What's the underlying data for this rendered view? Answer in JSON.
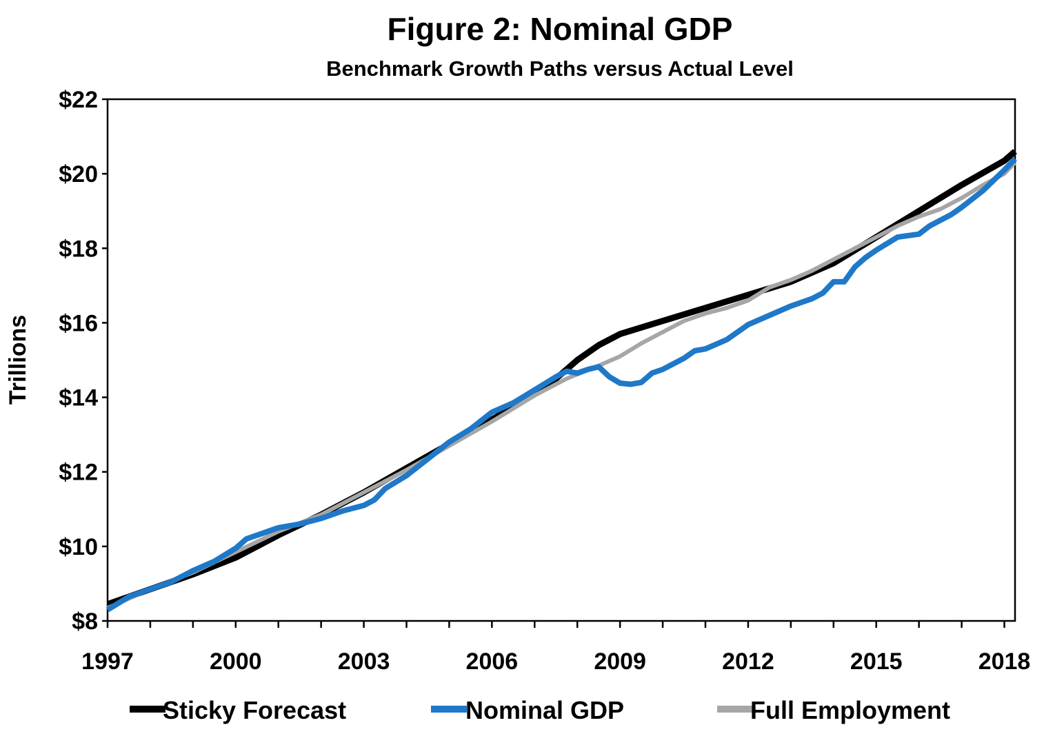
{
  "chart_data": {
    "type": "line",
    "title": "Figure 2: Nominal GDP",
    "subtitle": "Benchmark Growth Paths versus Actual Level",
    "ylabel": "Trillions",
    "xlabel": "",
    "ylim": [
      8,
      22
    ],
    "xlim": [
      1997.0,
      2018.25
    ],
    "y_ticks": [
      8,
      10,
      12,
      14,
      16,
      18,
      20,
      22
    ],
    "y_tick_labels": [
      "$8",
      "$10",
      "$12",
      "$14",
      "$16",
      "$18",
      "$20",
      "$22"
    ],
    "x_major_ticks": [
      1997,
      2000,
      2003,
      2006,
      2009,
      2012,
      2015,
      2018
    ],
    "x_tick_labels": [
      "1997",
      "2000",
      "2003",
      "2006",
      "2009",
      "2012",
      "2015",
      "2018"
    ],
    "legend_position": "bottom",
    "series": [
      {
        "name": "Sticky Forecast",
        "color": "#000000",
        "points": [
          [
            1997,
            8.45
          ],
          [
            1998,
            8.85
          ],
          [
            1999,
            9.25
          ],
          [
            2000,
            9.7
          ],
          [
            2001,
            10.3
          ],
          [
            2002,
            10.85
          ],
          [
            2003,
            11.45
          ],
          [
            2004,
            12.1
          ],
          [
            2005,
            12.75
          ],
          [
            2006,
            13.4
          ],
          [
            2007,
            14.1
          ],
          [
            2007.5,
            14.5
          ],
          [
            2008,
            15.0
          ],
          [
            2008.5,
            15.4
          ],
          [
            2009,
            15.7
          ],
          [
            2010,
            16.05
          ],
          [
            2011,
            16.4
          ],
          [
            2012,
            16.75
          ],
          [
            2013,
            17.1
          ],
          [
            2014,
            17.6
          ],
          [
            2015,
            18.3
          ],
          [
            2016,
            19.0
          ],
          [
            2017,
            19.7
          ],
          [
            2018,
            20.35
          ],
          [
            2018.25,
            20.6
          ]
        ]
      },
      {
        "name": "Nominal GDP",
        "color": "#1f78c8",
        "points": [
          [
            1997,
            8.3
          ],
          [
            1997.5,
            8.65
          ],
          [
            1998,
            8.85
          ],
          [
            1998.5,
            9.05
          ],
          [
            1999,
            9.35
          ],
          [
            1999.5,
            9.6
          ],
          [
            2000,
            9.95
          ],
          [
            2000.25,
            10.2
          ],
          [
            2000.75,
            10.4
          ],
          [
            2001,
            10.5
          ],
          [
            2001.5,
            10.6
          ],
          [
            2002,
            10.75
          ],
          [
            2002.5,
            10.95
          ],
          [
            2003,
            11.1
          ],
          [
            2003.25,
            11.25
          ],
          [
            2003.5,
            11.55
          ],
          [
            2004,
            11.9
          ],
          [
            2004.5,
            12.35
          ],
          [
            2005,
            12.8
          ],
          [
            2005.5,
            13.15
          ],
          [
            2006,
            13.6
          ],
          [
            2006.5,
            13.85
          ],
          [
            2007,
            14.2
          ],
          [
            2007.5,
            14.55
          ],
          [
            2007.75,
            14.7
          ],
          [
            2008,
            14.65
          ],
          [
            2008.25,
            14.75
          ],
          [
            2008.5,
            14.82
          ],
          [
            2008.75,
            14.55
          ],
          [
            2009,
            14.38
          ],
          [
            2009.25,
            14.35
          ],
          [
            2009.5,
            14.4
          ],
          [
            2009.75,
            14.65
          ],
          [
            2010,
            14.75
          ],
          [
            2010.5,
            15.05
          ],
          [
            2010.75,
            15.25
          ],
          [
            2011,
            15.3
          ],
          [
            2011.5,
            15.55
          ],
          [
            2012,
            15.95
          ],
          [
            2012.5,
            16.2
          ],
          [
            2013,
            16.45
          ],
          [
            2013.5,
            16.65
          ],
          [
            2013.75,
            16.8
          ],
          [
            2014,
            17.1
          ],
          [
            2014.25,
            17.1
          ],
          [
            2014.5,
            17.5
          ],
          [
            2014.75,
            17.75
          ],
          [
            2015,
            17.95
          ],
          [
            2015.5,
            18.3
          ],
          [
            2016,
            18.38
          ],
          [
            2016.25,
            18.6
          ],
          [
            2016.75,
            18.9
          ],
          [
            2017,
            19.1
          ],
          [
            2017.5,
            19.55
          ],
          [
            2018,
            20.1
          ],
          [
            2018.25,
            20.4
          ]
        ]
      },
      {
        "name": "Full Employment",
        "color": "#a6a6a6",
        "points": [
          [
            1997,
            8.35
          ],
          [
            1998,
            8.85
          ],
          [
            1999,
            9.3
          ],
          [
            2000,
            9.85
          ],
          [
            2001,
            10.4
          ],
          [
            2002,
            10.85
          ],
          [
            2003,
            11.45
          ],
          [
            2004,
            12.05
          ],
          [
            2005,
            12.7
          ],
          [
            2006,
            13.35
          ],
          [
            2007,
            14.05
          ],
          [
            2007.75,
            14.5
          ],
          [
            2008.5,
            14.85
          ],
          [
            2009,
            15.1
          ],
          [
            2009.5,
            15.45
          ],
          [
            2010,
            15.75
          ],
          [
            2010.5,
            16.05
          ],
          [
            2011,
            16.25
          ],
          [
            2011.5,
            16.4
          ],
          [
            2012,
            16.6
          ],
          [
            2012.5,
            16.95
          ],
          [
            2013,
            17.15
          ],
          [
            2013.5,
            17.4
          ],
          [
            2014,
            17.7
          ],
          [
            2014.5,
            18.0
          ],
          [
            2015,
            18.3
          ],
          [
            2015.5,
            18.6
          ],
          [
            2016,
            18.85
          ],
          [
            2016.5,
            19.05
          ],
          [
            2017,
            19.35
          ],
          [
            2017.5,
            19.7
          ],
          [
            2018,
            20.0
          ],
          [
            2018.25,
            20.3
          ]
        ]
      }
    ]
  }
}
